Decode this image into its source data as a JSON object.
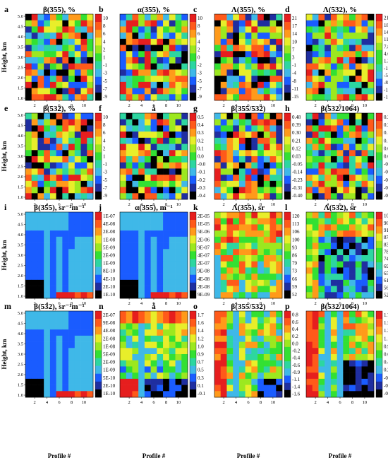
{
  "figure": {
    "ylabel": "Height, km",
    "xlabel": "Profile #",
    "x_ticks": [
      "2",
      "4",
      "6",
      "8",
      "10"
    ],
    "y_ticks": [
      "1.0",
      "1.5",
      "2.0",
      "2.5",
      "3.0",
      "3.5",
      "4.0",
      "4.5",
      "5.0"
    ]
  },
  "chart_data": [
    {
      "letter": "a",
      "title": "β(355), %",
      "type": "heatmap",
      "pattern": "random",
      "xlim": [
        1,
        11
      ],
      "ylim": [
        1.0,
        5.0
      ],
      "colorbar_ticks": [
        "10",
        "8",
        "6",
        "4",
        "2",
        "1",
        "-1",
        "-3",
        "-5",
        "-7",
        "-9"
      ]
    },
    {
      "letter": "b",
      "title": "α(355), %",
      "type": "heatmap",
      "pattern": "random",
      "xlim": [
        1,
        11
      ],
      "ylim": [
        1.0,
        5.0
      ],
      "colorbar_ticks": [
        "10",
        "8",
        "6",
        "4",
        "2",
        "0",
        "-2",
        "-3",
        "-5",
        "-7",
        "-9"
      ]
    },
    {
      "letter": "c",
      "title": "Λ(355), %",
      "type": "heatmap",
      "pattern": "random",
      "xlim": [
        1,
        11
      ],
      "ylim": [
        1.0,
        5.0
      ],
      "colorbar_ticks": [
        "21",
        "17",
        "14",
        "10",
        "7",
        "3",
        "-1",
        "-4",
        "-8",
        "-11",
        "-15"
      ]
    },
    {
      "letter": "d",
      "title": "Λ(532), %",
      "type": "heatmap",
      "pattern": "random",
      "xlim": [
        1,
        11
      ],
      "ylim": [
        1.0,
        5.0
      ],
      "colorbar_ticks": [
        "21",
        "18",
        "14",
        "11",
        "7.8",
        "4.6",
        "1.3",
        "-1.9",
        "-5.2",
        "-8.5",
        "-12",
        "-15"
      ]
    },
    {
      "letter": "e",
      "title": "β(532), %",
      "type": "heatmap",
      "pattern": "random",
      "xlim": [
        1,
        11
      ],
      "ylim": [
        1.0,
        5.0
      ],
      "colorbar_ticks": [
        "10",
        "8",
        "6",
        "4",
        "2",
        "1",
        "-1",
        "-3",
        "-5",
        "-7",
        "-9"
      ]
    },
    {
      "letter": "f",
      "title": "å",
      "type": "heatmap",
      "pattern": "random",
      "xlim": [
        1,
        11
      ],
      "ylim": [
        1.0,
        5.0
      ],
      "colorbar_ticks": [
        "0.5",
        "0.4",
        "0.3",
        "0.2",
        "0.1",
        "0.0",
        "-0.0",
        "-0.1",
        "-0.2",
        "-0.3",
        "-0.4"
      ]
    },
    {
      "letter": "g",
      "title": "β(355/532)",
      "type": "heatmap",
      "pattern": "random",
      "xlim": [
        1,
        11
      ],
      "ylim": [
        1.0,
        5.0
      ],
      "colorbar_ticks": [
        "0.48",
        "0.39",
        "0.30",
        "0.21",
        "0.12",
        "0.03",
        "-0.05",
        "-0.14",
        "-0.23",
        "-0.31",
        "-0.40"
      ]
    },
    {
      "letter": "h",
      "title": "β(532/1064)",
      "type": "heatmap",
      "pattern": "random",
      "xlim": [
        1,
        11
      ],
      "ylim": [
        1.0,
        5.0
      ],
      "colorbar_ticks": [
        "0.26",
        "0.22",
        "0.17",
        "0.12",
        "0.07",
        "0.02",
        "-0.03",
        "-0.07",
        "-0.12",
        "-0.17",
        "-0.22"
      ]
    },
    {
      "letter": "i",
      "title": "β(355), sr⁻¹m⁻¹",
      "type": "heatmap",
      "pattern": "backscatter",
      "xlim": [
        1,
        11
      ],
      "ylim": [
        1.0,
        5.0
      ],
      "colorbar_ticks": [
        "1E-07",
        "4E-08",
        "2E-08",
        "1E-08",
        "5E-09",
        "2E-09",
        "1E-09",
        "8E-10",
        "4E-10",
        "2E-10",
        "1E-10"
      ]
    },
    {
      "letter": "j",
      "title": "α(355), m⁻¹",
      "type": "heatmap",
      "pattern": "backscatter",
      "xlim": [
        1,
        11
      ],
      "ylim": [
        1.0,
        5.0
      ],
      "colorbar_ticks": [
        "2E-05",
        "1E-05",
        "5E-06",
        "2E-06",
        "9E-07",
        "4E-07",
        "2E-07",
        "9E-08",
        "4E-08",
        "2E-08",
        "9E-09"
      ]
    },
    {
      "letter": "k",
      "title": "Λ(355), sr",
      "type": "heatmap",
      "pattern": "lidarratio_k",
      "xlim": [
        1,
        11
      ],
      "ylim": [
        1.0,
        5.0
      ],
      "colorbar_ticks": [
        "120",
        "113",
        "106",
        "100",
        "93",
        "86",
        "79",
        "73",
        "66",
        "59",
        "52"
      ]
    },
    {
      "letter": "l",
      "title": "Λ(532), sr",
      "type": "heatmap",
      "pattern": "lidarratio_l",
      "xlim": [
        1,
        11
      ],
      "ylim": [
        1.0,
        5.0
      ],
      "colorbar_ticks": [
        "100",
        "96",
        "91",
        "87",
        "83",
        "78",
        "74",
        "69",
        "65",
        "61",
        "56",
        "52"
      ]
    },
    {
      "letter": "m",
      "title": "β(532), sr⁻¹m⁻¹",
      "type": "heatmap",
      "pattern": "backscatter",
      "xlim": [
        1,
        11
      ],
      "ylim": [
        1.0,
        5.0
      ],
      "colorbar_ticks": [
        "2E-07",
        "9E-08",
        "4E-08",
        "2E-08",
        "1E-08",
        "5E-09",
        "2E-09",
        "1E-09",
        "5E-10",
        "2E-10",
        "1E-10"
      ]
    },
    {
      "letter": "n",
      "title": "å",
      "type": "heatmap",
      "pattern": "angstrom",
      "xlim": [
        1,
        11
      ],
      "ylim": [
        1.0,
        5.0
      ],
      "colorbar_ticks": [
        "1.7",
        "1.6",
        "1.4",
        "1.2",
        "1.0",
        "0.9",
        "0.7",
        "0.5",
        "0.3",
        "0.1",
        "-0.1"
      ]
    },
    {
      "letter": "o",
      "title": "β(355/532)",
      "type": "heatmap",
      "pattern": "ratio_o",
      "xlim": [
        1,
        11
      ],
      "ylim": [
        1.0,
        5.0
      ],
      "colorbar_ticks": [
        "0.8",
        "0.6",
        "0.4",
        "0.2",
        "0.0",
        "-0.2",
        "-0.4",
        "-0.6",
        "-0.9",
        "-1.1",
        "-1.4",
        "-1.6"
      ]
    },
    {
      "letter": "p",
      "title": "β(532/1064)",
      "type": "heatmap",
      "pattern": "ratio_p",
      "xlim": [
        1,
        11
      ],
      "ylim": [
        1.0,
        5.0
      ],
      "colorbar_ticks": [
        "1.7",
        "1.5",
        "1.3",
        "1.1",
        "0.9",
        "0.6",
        "0.4",
        "0.2",
        "-0.1",
        "-0.3",
        "-0.6"
      ]
    }
  ],
  "colors": {
    "scale": [
      "#000000",
      "#1f2ea0",
      "#1a5cff",
      "#3fb8e8",
      "#2dd6a0",
      "#33e033",
      "#9ce81f",
      "#e8ee2a",
      "#ff9a1a",
      "#ff5a1a",
      "#e61e1e"
    ]
  }
}
